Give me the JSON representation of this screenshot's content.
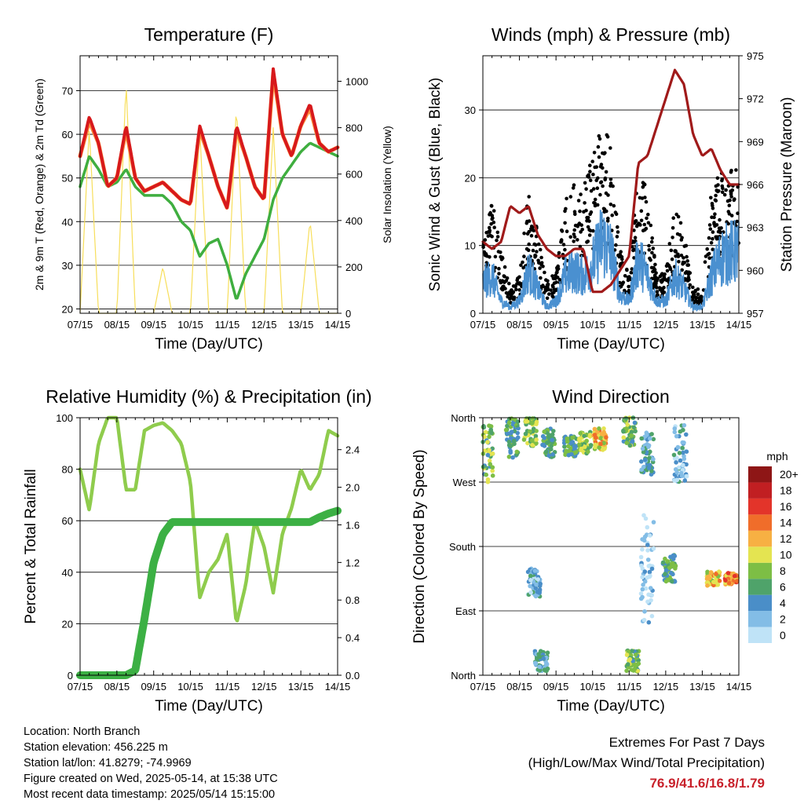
{
  "colors": {
    "temp_red": "#d7191c",
    "temp_orange": "#fd8d3c",
    "dewpoint_green": "#3fae3f",
    "insolation_yellow": "#f7de5a",
    "wind_blue": "#4a90d0",
    "gust_black": "#000000",
    "pressure_maroon": "#a01a1a",
    "rh_lightgreen": "#8fcc4d",
    "precip_green": "#3cb044",
    "extremes_red": "#c8202a"
  },
  "x_ticks": [
    "07/15",
    "08/15",
    "09/15",
    "10/15",
    "11/15",
    "12/15",
    "13/15",
    "14/15"
  ],
  "chart_data": [
    {
      "id": "temperature",
      "type": "line",
      "title": "Temperature (F)",
      "xlabel": "Time (Day/UTC)",
      "ylabel_left": "2m & 9m T (Red, Orange) & 2m Td (Green)",
      "ylabel_right": "Solar Insolation (Yellow)",
      "ylim": [
        19,
        78
      ],
      "y2lim": [
        0,
        1110
      ],
      "yticks": [
        20,
        30,
        40,
        50,
        60,
        70
      ],
      "y2ticks": [
        0,
        200,
        400,
        600,
        800,
        1000
      ],
      "x": [
        7.0,
        7.25,
        7.5,
        7.75,
        8.0,
        8.25,
        8.5,
        8.75,
        9.0,
        9.25,
        9.5,
        9.75,
        10.0,
        10.25,
        10.5,
        10.75,
        11.0,
        11.25,
        11.5,
        11.75,
        12.0,
        12.25,
        12.5,
        12.75,
        13.0,
        13.25,
        13.5,
        13.75,
        14.0
      ],
      "series": [
        {
          "name": "2m T",
          "values": [
            55,
            64,
            58,
            48,
            50,
            62,
            50,
            47,
            48,
            49,
            47,
            45,
            44,
            62,
            55,
            48,
            43,
            62,
            55,
            48,
            45,
            75,
            60,
            55,
            62,
            67,
            58,
            56,
            57
          ]
        },
        {
          "name": "9m T",
          "values": [
            55,
            63,
            58,
            48,
            50,
            61,
            50,
            47,
            48,
            49,
            47,
            45,
            44,
            61,
            55,
            48,
            43,
            61,
            55,
            48,
            45,
            74,
            60,
            55,
            62,
            66,
            58,
            56,
            57
          ]
        },
        {
          "name": "2m Td",
          "values": [
            48,
            55,
            52,
            48,
            49,
            52,
            48,
            46,
            46,
            46,
            44,
            40,
            38,
            32,
            35,
            36,
            30,
            22,
            28,
            32,
            36,
            45,
            50,
            53,
            56,
            58,
            57,
            56,
            55
          ]
        },
        {
          "name": "Solar Insolation",
          "values": [
            0,
            800,
            0,
            0,
            0,
            1000,
            0,
            0,
            0,
            200,
            0,
            0,
            0,
            800,
            0,
            0,
            0,
            900,
            0,
            0,
            0,
            800,
            0,
            0,
            0,
            400,
            0,
            0,
            0
          ]
        }
      ]
    },
    {
      "id": "winds",
      "type": "line",
      "title": "Winds (mph) & Pressure (mb)",
      "xlabel": "Time (Day/UTC)",
      "ylabel_left": "Sonic Wind & Gust (Blue, Black)",
      "ylabel_right": "Station Pressure (Maroon)",
      "ylim": [
        0,
        38
      ],
      "y2lim": [
        957,
        975
      ],
      "yticks": [
        0,
        10,
        20,
        30
      ],
      "y2ticks": [
        957,
        960,
        963,
        966,
        969,
        972,
        975
      ],
      "x": [
        7.0,
        7.25,
        7.5,
        7.75,
        8.0,
        8.25,
        8.5,
        8.75,
        9.0,
        9.25,
        9.5,
        9.75,
        10.0,
        10.25,
        10.5,
        10.75,
        11.0,
        11.25,
        11.5,
        11.75,
        12.0,
        12.25,
        12.5,
        12.75,
        13.0,
        13.25,
        13.5,
        13.75,
        14.0
      ],
      "series": [
        {
          "name": "Sonic Wind",
          "values": [
            5,
            6,
            2,
            1,
            2,
            7,
            4,
            1,
            2,
            6,
            7,
            6,
            8,
            12,
            10,
            3,
            2,
            9,
            6,
            2,
            2,
            6,
            4,
            1,
            1,
            6,
            9,
            10,
            10
          ]
        },
        {
          "name": "Gust",
          "values": [
            12,
            14,
            8,
            3,
            5,
            16,
            10,
            4,
            5,
            14,
            16,
            16,
            20,
            27,
            20,
            8,
            5,
            18,
            15,
            5,
            5,
            14,
            10,
            3,
            3,
            15,
            18,
            18,
            18
          ]
        },
        {
          "name": "Station Pressure",
          "values": [
            962,
            961.5,
            962,
            964.5,
            964,
            964.5,
            962.5,
            961.5,
            961,
            961,
            961.5,
            961.5,
            958.5,
            958.5,
            959,
            960,
            961,
            967.5,
            968,
            970,
            972,
            974,
            973,
            969.5,
            968,
            968.5,
            967,
            966,
            966
          ]
        }
      ]
    },
    {
      "id": "humidity",
      "type": "line",
      "title": "Relative Humidity (%) & Precipitation (in)",
      "xlabel": "Time (Day/UTC)",
      "ylabel_left": "Percent & Total Rainfall",
      "ylim": [
        0,
        100
      ],
      "y2lim": [
        0,
        2.74
      ],
      "yticks": [
        0,
        20,
        40,
        60,
        80,
        100
      ],
      "y2ticks": [
        "0.0",
        "0.4",
        "0.8",
        "1.2",
        "1.6",
        "2.0",
        "2.4"
      ],
      "x": [
        7.0,
        7.25,
        7.5,
        7.75,
        8.0,
        8.25,
        8.5,
        8.75,
        9.0,
        9.25,
        9.5,
        9.75,
        10.0,
        10.25,
        10.5,
        10.75,
        11.0,
        11.25,
        11.5,
        11.75,
        12.0,
        12.25,
        12.5,
        12.75,
        13.0,
        13.25,
        13.5,
        13.75,
        14.0
      ],
      "series": [
        {
          "name": "RH",
          "values": [
            80,
            64,
            90,
            100,
            100,
            72,
            72,
            95,
            97,
            98,
            95,
            90,
            75,
            30,
            40,
            45,
            55,
            20,
            35,
            60,
            50,
            32,
            55,
            65,
            80,
            72,
            78,
            95,
            93
          ]
        },
        {
          "name": "Total Rainfall",
          "values": [
            0,
            0,
            0,
            0,
            0,
            0,
            0.05,
            0.6,
            1.2,
            1.5,
            1.63,
            1.63,
            1.63,
            1.63,
            1.63,
            1.63,
            1.63,
            1.63,
            1.63,
            1.63,
            1.63,
            1.63,
            1.63,
            1.63,
            1.63,
            1.63,
            1.68,
            1.72,
            1.75
          ]
        }
      ]
    },
    {
      "id": "direction",
      "type": "scatter",
      "title": "Wind Direction",
      "xlabel": "Time (Day/UTC)",
      "ylabel_left": "Direction (Colored By Speed)",
      "yticks": [
        "North",
        "East",
        "South",
        "West",
        "North"
      ],
      "ylim": [
        0,
        360
      ],
      "colorbar_label": "mph",
      "colorbar_ticks": [
        "0",
        "2",
        "4",
        "6",
        "8",
        "10",
        "12",
        "14",
        "16",
        "18",
        "20+"
      ],
      "colorbar_colors": [
        "#bfe3f7",
        "#83bde6",
        "#4a8ec8",
        "#4fa36a",
        "#7dbe45",
        "#e4e451",
        "#f7b043",
        "#f06d2a",
        "#e3342a",
        "#c11f22",
        "#8e1616"
      ],
      "clusters": [
        {
          "x": 7.1,
          "dir_center": 310,
          "dir_spread": 40,
          "speed": 7
        },
        {
          "x": 7.8,
          "dir_center": 330,
          "dir_spread": 30,
          "speed": 6
        },
        {
          "x": 8.3,
          "dir_center": 340,
          "dir_spread": 20,
          "speed": 8
        },
        {
          "x": 8.8,
          "dir_center": 325,
          "dir_spread": 20,
          "speed": 6
        },
        {
          "x": 9.4,
          "dir_center": 320,
          "dir_spread": 15,
          "speed": 6
        },
        {
          "x": 9.8,
          "dir_center": 325,
          "dir_spread": 15,
          "speed": 8
        },
        {
          "x": 10.2,
          "dir_center": 330,
          "dir_spread": 15,
          "speed": 11
        },
        {
          "x": 11.0,
          "dir_center": 340,
          "dir_spread": 20,
          "speed": 7
        },
        {
          "x": 11.5,
          "dir_center": 310,
          "dir_spread": 30,
          "speed": 4
        },
        {
          "x": 12.4,
          "dir_center": 310,
          "dir_spread": 40,
          "speed": 3
        },
        {
          "x": 12.1,
          "dir_center": 150,
          "dir_spread": 20,
          "speed": 6
        },
        {
          "x": 13.3,
          "dir_center": 135,
          "dir_spread": 10,
          "speed": 11
        },
        {
          "x": 13.8,
          "dir_center": 135,
          "dir_spread": 8,
          "speed": 13
        },
        {
          "x": 8.4,
          "dir_center": 130,
          "dir_spread": 20,
          "speed": 3
        },
        {
          "x": 8.6,
          "dir_center": 20,
          "dir_spread": 15,
          "speed": 4
        },
        {
          "x": 11.1,
          "dir_center": 20,
          "dir_spread": 15,
          "speed": 7
        },
        {
          "x": 11.5,
          "dir_center": 150,
          "dir_spread": 80,
          "speed": 1
        }
      ]
    }
  ],
  "footer": {
    "location": "Location: North Branch",
    "elevation": "Station elevation: 456.225 m",
    "latlon": "Station lat/lon: 41.8279; -74.9969",
    "created": "Figure created on Wed, 2025-05-14, at 15:38 UTC",
    "recent": "Most recent data timestamp: 2025/05/14 15:15:00"
  },
  "extremes": {
    "title": "Extremes For Past 7 Days",
    "subtitle": "(High/Low/Max Wind/Total Precipitation)",
    "values": "76.9/41.6/16.8/1.79"
  }
}
